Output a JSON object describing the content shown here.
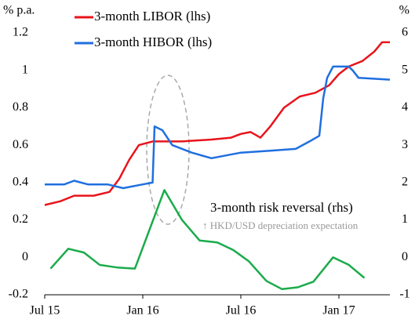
{
  "chart_data": {
    "type": "line",
    "ylabel": "% p.a.",
    "y2label": "%",
    "annotation": "↑ HKD/USD depreciation expectation",
    "xlim": [
      2015.5,
      2017.26
    ],
    "xticks": [
      {
        "value": 2015.5,
        "label": "Jul 15"
      },
      {
        "value": 2016.0,
        "label": "Jan 16"
      },
      {
        "value": 2016.5,
        "label": "Jul 16"
      },
      {
        "value": 2017.0,
        "label": "Jan 17"
      }
    ],
    "ylim": [
      -0.2,
      1.2
    ],
    "yticks": [
      -0.2,
      0,
      0.2,
      0.4,
      0.6,
      0.8,
      1,
      1.2
    ],
    "y2lim": [
      -1,
      6
    ],
    "y2ticks": [
      -1,
      0,
      1,
      2,
      3,
      4,
      5,
      6
    ],
    "series": [
      {
        "name": "3-month LIBOR (lhs)",
        "color": "#e8141b",
        "x": [
          2015.5,
          2015.58,
          2015.65,
          2015.75,
          2015.83,
          2015.88,
          2015.93,
          2015.98,
          2016.05,
          2016.2,
          2016.35,
          2016.45,
          2016.5,
          2016.55,
          2016.6,
          2016.65,
          2016.72,
          2016.8,
          2016.88,
          2016.95,
          2017.0,
          2017.05,
          2017.12,
          2017.18,
          2017.22,
          2017.26
        ],
        "values": [
          0.28,
          0.3,
          0.33,
          0.33,
          0.35,
          0.42,
          0.52,
          0.6,
          0.62,
          0.62,
          0.63,
          0.64,
          0.66,
          0.67,
          0.64,
          0.7,
          0.8,
          0.86,
          0.88,
          0.92,
          0.98,
          1.02,
          1.05,
          1.1,
          1.15,
          1.15
        ]
      },
      {
        "name": "3-month HIBOR (lhs)",
        "color": "#1f6fe0",
        "x": [
          2015.5,
          2015.6,
          2015.65,
          2015.72,
          2015.82,
          2015.9,
          2016.0,
          2016.05,
          2016.06,
          2016.1,
          2016.15,
          2016.25,
          2016.35,
          2016.5,
          2016.65,
          2016.78,
          2016.85,
          2016.9,
          2016.92,
          2016.94,
          2016.97,
          2017.05,
          2017.07,
          2017.1,
          2017.26
        ],
        "values": [
          0.39,
          0.39,
          0.41,
          0.39,
          0.39,
          0.37,
          0.39,
          0.4,
          0.7,
          0.68,
          0.6,
          0.56,
          0.53,
          0.56,
          0.57,
          0.58,
          0.62,
          0.65,
          0.85,
          0.96,
          1.02,
          1.02,
          1.0,
          0.96,
          0.95
        ]
      },
      {
        "name": "3-month risk reversal (rhs)",
        "color": "#1aab4a",
        "axis": "y2",
        "x": [
          2015.53,
          2015.62,
          2015.7,
          2015.78,
          2015.87,
          2015.96,
          2016.11,
          2016.2,
          2016.29,
          2016.38,
          2016.46,
          2016.54,
          2016.63,
          2016.71,
          2016.79,
          2016.87,
          2016.97,
          2017.05,
          2017.13
        ],
        "values": [
          -0.3,
          0.23,
          0.13,
          -0.2,
          -0.27,
          -0.3,
          1.8,
          1.0,
          0.45,
          0.4,
          0.2,
          -0.1,
          -0.63,
          -0.85,
          -0.8,
          -0.65,
          0.0,
          -0.2,
          -0.55
        ]
      }
    ]
  }
}
